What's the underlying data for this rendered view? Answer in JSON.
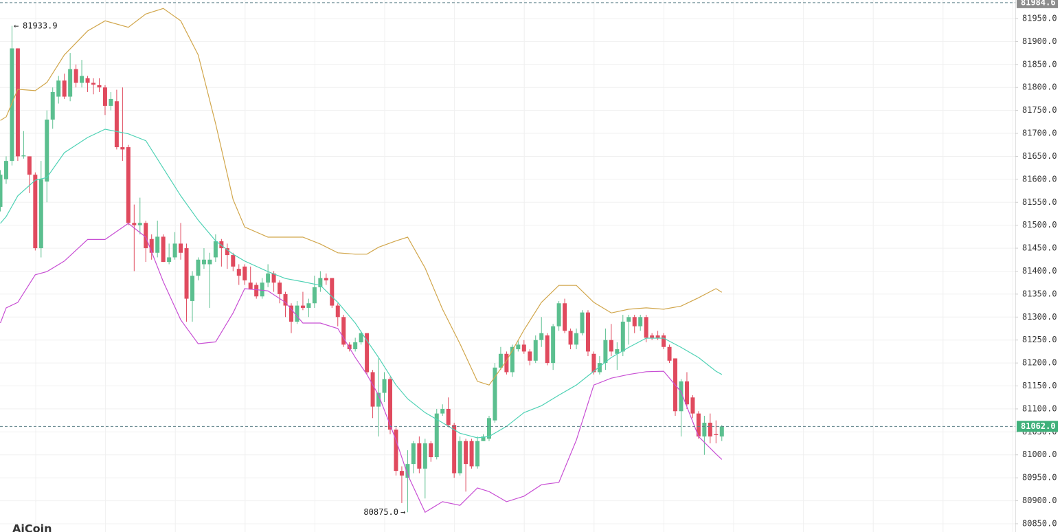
{
  "chart_data": {
    "type": "candlestick",
    "ylim": [
      80832.0,
      81990.4
    ],
    "yticks": [
      {
        "value": 80850,
        "label": "80850.0"
      },
      {
        "value": 80900,
        "label": "80900.0"
      },
      {
        "value": 80950,
        "label": "80950.0"
      },
      {
        "value": 81000,
        "label": "81000.0"
      },
      {
        "value": 81050,
        "label": "81050.0"
      },
      {
        "value": 81100,
        "label": "81100.0"
      },
      {
        "value": 81150,
        "label": "81150.0"
      },
      {
        "value": 81200,
        "label": "81200.0"
      },
      {
        "value": 81250,
        "label": "81250.0"
      },
      {
        "value": 81300,
        "label": "81300.0"
      },
      {
        "value": 81350,
        "label": "81350.0"
      },
      {
        "value": 81400,
        "label": "81400.0"
      },
      {
        "value": 81450,
        "label": "81450.0"
      },
      {
        "value": 81500,
        "label": "81500.0"
      },
      {
        "value": 81550,
        "label": "81550.0"
      },
      {
        "value": 81600,
        "label": "81600.0"
      },
      {
        "value": 81650,
        "label": "81650.0"
      },
      {
        "value": 81700,
        "label": "81700.0"
      },
      {
        "value": 81750,
        "label": "81750.0"
      },
      {
        "value": 81800,
        "label": "81800.0"
      },
      {
        "value": 81850,
        "label": "81850.0"
      },
      {
        "value": 81900,
        "label": "81900.0"
      },
      {
        "value": 81950,
        "label": "81950.0"
      }
    ],
    "grid": true,
    "up_color": "#5bbf8f",
    "down_color": "#e04a5e",
    "candles": [
      [
        81540,
        81620,
        81530,
        81610
      ],
      [
        81600,
        81650,
        81590,
        81640
      ],
      [
        81640,
        81934,
        81630,
        81885
      ],
      [
        81885,
        81885,
        81640,
        81650
      ],
      [
        81650,
        81705,
        81645,
        81652
      ],
      [
        81650,
        81650,
        81570,
        81610
      ],
      [
        81610,
        81615,
        81445,
        81450
      ],
      [
        81450,
        81640,
        81430,
        81600
      ],
      [
        81595,
        81750,
        81550,
        81730
      ],
      [
        81730,
        81800,
        81710,
        81790
      ],
      [
        81780,
        81825,
        81765,
        81815
      ],
      [
        81815,
        81830,
        81775,
        81780
      ],
      [
        81780,
        81875,
        81770,
        81840
      ],
      [
        81840,
        81850,
        81800,
        81810
      ],
      [
        81810,
        81860,
        81800,
        81825
      ],
      [
        81820,
        81825,
        81790,
        81810
      ],
      [
        81810,
        81820,
        81785,
        81806
      ],
      [
        81805,
        81820,
        81790,
        81800
      ],
      [
        81800,
        81805,
        81740,
        81760
      ],
      [
        81760,
        81790,
        81750,
        81775
      ],
      [
        81770,
        81795,
        81665,
        81670
      ],
      [
        81670,
        81800,
        81640,
        81665
      ],
      [
        81670,
        81675,
        81500,
        81505
      ],
      [
        81505,
        81545,
        81400,
        81500
      ],
      [
        81500,
        81560,
        81480,
        81505
      ],
      [
        81505,
        81510,
        81420,
        81450
      ],
      [
        81470,
        81480,
        81425,
        81440
      ],
      [
        81440,
        81510,
        81430,
        81475
      ],
      [
        81475,
        81480,
        81420,
        81420
      ],
      [
        81420,
        81460,
        81415,
        81430
      ],
      [
        81430,
        81485,
        81425,
        81460
      ],
      [
        81460,
        81505,
        81425,
        81440
      ],
      [
        81450,
        81460,
        81290,
        81340
      ],
      [
        81335,
        81400,
        81290,
        81390
      ],
      [
        81390,
        81430,
        81380,
        81425
      ],
      [
        81415,
        81450,
        81405,
        81425
      ],
      [
        81415,
        81440,
        81320,
        81425
      ],
      [
        81430,
        81480,
        81420,
        81465
      ],
      [
        81465,
        81470,
        81410,
        81450
      ],
      [
        81450,
        81460,
        81405,
        81435
      ],
      [
        81435,
        81440,
        81400,
        81410
      ],
      [
        81405,
        81415,
        81370,
        81390
      ],
      [
        81410,
        81415,
        81370,
        81380
      ],
      [
        81375,
        81410,
        81360,
        81360
      ],
      [
        81370,
        81375,
        81340,
        81345
      ],
      [
        81345,
        81385,
        81340,
        81375
      ],
      [
        81375,
        81415,
        81365,
        81395
      ],
      [
        81395,
        81400,
        81355,
        81375
      ],
      [
        81375,
        81380,
        81330,
        81350
      ],
      [
        81350,
        81355,
        81300,
        81325
      ],
      [
        81325,
        81330,
        81265,
        81290
      ],
      [
        81290,
        81335,
        81285,
        81325
      ],
      [
        81325,
        81355,
        81315,
        81320
      ],
      [
        81320,
        81340,
        81300,
        81330
      ],
      [
        81330,
        81390,
        81320,
        81365
      ],
      [
        81365,
        81400,
        81355,
        81385
      ],
      [
        81385,
        81395,
        81370,
        81380
      ],
      [
        81385,
        81385,
        81320,
        81325
      ],
      [
        81325,
        81330,
        81280,
        81300
      ],
      [
        81300,
        81305,
        81235,
        81240
      ],
      [
        81240,
        81245,
        81225,
        81230
      ],
      [
        81230,
        81255,
        81225,
        81245
      ],
      [
        81245,
        81270,
        81240,
        81265
      ],
      [
        81265,
        81265,
        81175,
        81180
      ],
      [
        81180,
        81185,
        81080,
        81105
      ],
      [
        81105,
        81210,
        81040,
        81135
      ],
      [
        81135,
        81180,
        81115,
        81165
      ],
      [
        81165,
        81170,
        81045,
        81055
      ],
      [
        81055,
        81060,
        80955,
        80965
      ],
      [
        80965,
        80975,
        80895,
        80955
      ],
      [
        80950,
        81010,
        80875,
        80980
      ],
      [
        80980,
        81030,
        80960,
        81025
      ],
      [
        81025,
        81040,
        80960,
        80970
      ],
      [
        80970,
        81035,
        80905,
        81025
      ],
      [
        81025,
        81030,
        80985,
        80995
      ],
      [
        80995,
        81100,
        80990,
        81090
      ],
      [
        81090,
        81110,
        81085,
        81100
      ],
      [
        81100,
        81125,
        81060,
        81065
      ],
      [
        81065,
        81070,
        80950,
        80960
      ],
      [
        80960,
        81040,
        80955,
        81030
      ],
      [
        81030,
        81035,
        80920,
        80980
      ],
      [
        81030,
        81035,
        80970,
        80975
      ],
      [
        80975,
        81040,
        80970,
        81030
      ],
      [
        81030,
        81045,
        81030,
        81040
      ],
      [
        81035,
        81085,
        81030,
        81080
      ],
      [
        81075,
        81200,
        81070,
        81190
      ],
      [
        81190,
        81235,
        81185,
        81220
      ],
      [
        81220,
        81225,
        81175,
        81180
      ],
      [
        81180,
        81240,
        81170,
        81235
      ],
      [
        81230,
        81250,
        81225,
        81240
      ],
      [
        81240,
        81250,
        81220,
        81225
      ],
      [
        81225,
        81230,
        81195,
        81205
      ],
      [
        81205,
        81260,
        81200,
        81250
      ],
      [
        81250,
        81300,
        81235,
        81265
      ],
      [
        81260,
        81265,
        81195,
        81200
      ],
      [
        81200,
        81285,
        81185,
        81280
      ],
      [
        81280,
        81335,
        81270,
        81330
      ],
      [
        81330,
        81340,
        81265,
        81270
      ],
      [
        81270,
        81275,
        81230,
        81240
      ],
      [
        81240,
        81275,
        81230,
        81265
      ],
      [
        81265,
        81315,
        81260,
        81310
      ],
      [
        81310,
        81315,
        81215,
        81225
      ],
      [
        81220,
        81225,
        81175,
        81180
      ],
      [
        81180,
        81215,
        81175,
        81200
      ],
      [
        81200,
        81275,
        81185,
        81250
      ],
      [
        81250,
        81285,
        81215,
        81225
      ],
      [
        81220,
        81245,
        81185,
        81230
      ],
      [
        81225,
        81305,
        81215,
        81290
      ],
      [
        81290,
        81305,
        81240,
        81300
      ],
      [
        81300,
        81305,
        81265,
        81280
      ],
      [
        81280,
        81305,
        81270,
        81300
      ],
      [
        81300,
        81305,
        81245,
        81255
      ],
      [
        81260,
        81265,
        81250,
        81255
      ],
      [
        81260,
        81270,
        81250,
        81255
      ],
      [
        81260,
        81265,
        81230,
        81235
      ],
      [
        81235,
        81240,
        81200,
        81205
      ],
      [
        81210,
        81210,
        81085,
        81095
      ],
      [
        81095,
        81165,
        81040,
        81160
      ],
      [
        81160,
        81180,
        81100,
        81110
      ],
      [
        81125,
        81130,
        81080,
        81090
      ],
      [
        81090,
        81095,
        81035,
        81040
      ],
      [
        81040,
        81085,
        81000,
        81070
      ],
      [
        81070,
        81090,
        81025,
        81040
      ],
      [
        81045,
        81075,
        81025,
        81043
      ],
      [
        81040,
        81065,
        81030,
        81062
      ]
    ],
    "band_x": [
      0,
      1,
      3,
      6,
      8,
      11,
      15,
      18,
      22,
      25,
      28,
      31,
      34,
      37,
      40,
      42,
      46,
      49,
      52,
      55,
      58,
      61,
      63,
      65,
      68,
      70,
      73,
      76,
      79,
      82,
      84,
      87,
      90,
      93,
      96,
      99,
      102,
      105,
      108,
      111,
      114,
      117,
      120,
      123,
      124
    ],
    "bands": [
      {
        "color": "#d1a64b",
        "values": [
          81728,
          81736,
          81796,
          81793,
          81811,
          81871,
          81923,
          81945,
          81931,
          81960,
          81972,
          81945,
          81871,
          81721,
          81556,
          81496,
          81474,
          81474,
          81474,
          81459,
          81440,
          81437,
          81437,
          81452,
          81466,
          81474,
          81407,
          81317,
          81242,
          81160,
          81152,
          81205,
          81272,
          81332,
          81369,
          81369,
          81332,
          81309,
          81317,
          81320,
          81317,
          81324,
          81342,
          81362,
          81354
        ]
      },
      {
        "color": "#4fd2b5",
        "values": [
          81504,
          81519,
          81564,
          81598,
          81604,
          81658,
          81691,
          81709,
          81699,
          81684,
          81624,
          81564,
          81511,
          81466,
          81437,
          81422,
          81399,
          81384,
          81377,
          81369,
          81332,
          81287,
          81249,
          81212,
          81152,
          81122,
          81092,
          81070,
          81047,
          81037,
          81040,
          81062,
          81092,
          81107,
          81130,
          81152,
          81182,
          81212,
          81234,
          81254,
          81254,
          81234,
          81212,
          81182,
          81175
        ]
      },
      {
        "color": "#c84fd4",
        "values": [
          81287,
          81320,
          81332,
          81392,
          81399,
          81422,
          81469,
          81469,
          81504,
          81474,
          81377,
          81294,
          81242,
          81246,
          81309,
          81362,
          81357,
          81332,
          81287,
          81287,
          81275,
          81212,
          81175,
          81130,
          81032,
          80957,
          80875,
          80898,
          80890,
          80928,
          80920,
          80898,
          80910,
          80935,
          80940,
          81032,
          81152,
          81167,
          81175,
          81181,
          81182,
          81137,
          81040,
          81002,
          80990
        ]
      }
    ],
    "high_annotation": 81933.9,
    "low_annotation": {
      "value": 80875.0,
      "label": "80875.0"
    },
    "top_price_tag": 81984.6,
    "last_price_tag": {
      "value": 81062.0,
      "label": "81062.0"
    },
    "watermark": "AiCoin"
  }
}
